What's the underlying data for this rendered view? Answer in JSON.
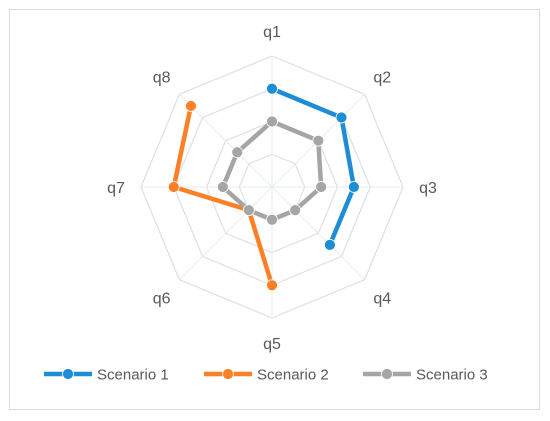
{
  "chart_data": {
    "type": "radar",
    "categories": [
      "q1",
      "q2",
      "q3",
      "q4",
      "q5",
      "q6",
      "q7",
      "q8"
    ],
    "rmax": 4,
    "grid_levels": [
      1,
      2,
      3,
      4
    ],
    "series": [
      {
        "name": "Scenario 1",
        "color": "#1f8dd6",
        "values": [
          3,
          3,
          2.5,
          2.5,
          null,
          null,
          null,
          null
        ]
      },
      {
        "name": "Scenario 2",
        "color": "#ff7f27",
        "values": [
          null,
          null,
          null,
          null,
          3,
          1,
          3,
          3.5
        ]
      },
      {
        "name": "Scenario 3",
        "color": "#a5a5a5",
        "values": [
          2,
          2,
          1.5,
          1,
          1,
          1,
          1.5,
          1.5
        ]
      }
    ],
    "legend_position": "bottom"
  }
}
